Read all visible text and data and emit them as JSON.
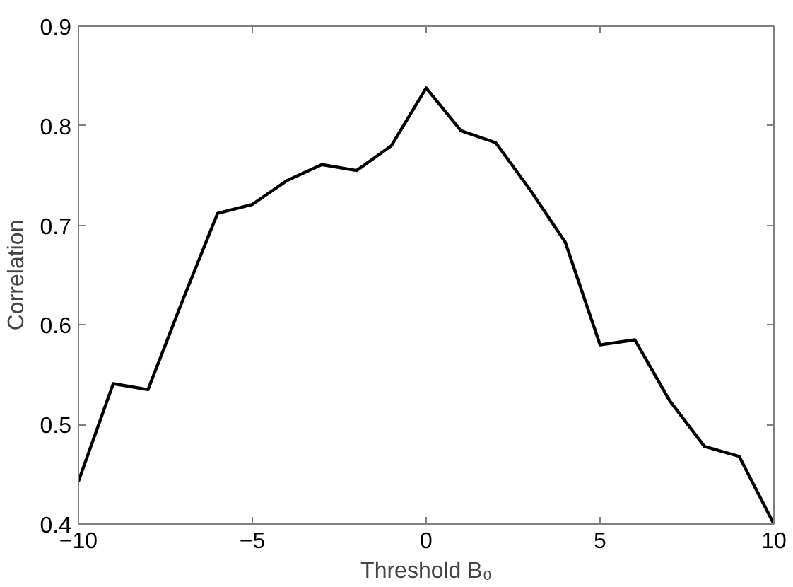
{
  "chart_data": {
    "type": "line",
    "xlabel": "Threshold B₀",
    "ylabel": "Correlation",
    "x": [
      -10,
      -9,
      -8,
      -7,
      -6,
      -5,
      -4,
      -3,
      -2,
      -1,
      0,
      1,
      2,
      3,
      4,
      5,
      6,
      7,
      8,
      9,
      10
    ],
    "series": [
      {
        "color": "#000000",
        "values": [
          0.443,
          0.541,
          0.535,
          0.625,
          0.712,
          0.721,
          0.745,
          0.761,
          0.755,
          0.78,
          0.838,
          0.795,
          0.783,
          0.735,
          0.683,
          0.58,
          0.585,
          0.524,
          0.478,
          0.468,
          0.4
        ]
      }
    ],
    "xlim": [
      -10,
      10
    ],
    "ylim": [
      0.4,
      0.9
    ],
    "xticks": [
      {
        "value": -10,
        "label": "−10"
      },
      {
        "value": -5,
        "label": "−5"
      },
      0,
      5,
      10
    ],
    "yticks": [
      0.4,
      0.5,
      0.6,
      0.7,
      0.8,
      0.9
    ]
  }
}
